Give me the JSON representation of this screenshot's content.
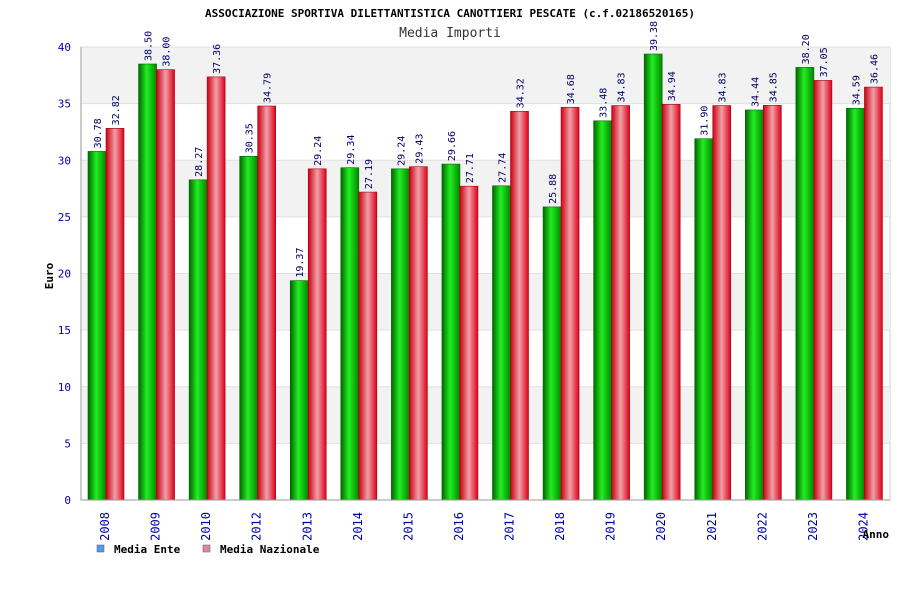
{
  "chart_data": {
    "type": "bar",
    "title": "ASSOCIAZIONE SPORTIVA DILETTANTISTICA CANOTTIERI PESCATE (c.f.02186520165)",
    "subtitle": "Media Importi",
    "xlabel": "Anno",
    "ylabel": "Euro",
    "ylim": [
      0,
      40
    ],
    "yticks": [
      0,
      5,
      10,
      15,
      20,
      25,
      30,
      35,
      40
    ],
    "grid": true,
    "legend_position": "bottom-left",
    "categories": [
      "2008",
      "2009",
      "2010",
      "2012",
      "2013",
      "2014",
      "2015",
      "2016",
      "2017",
      "2018",
      "2019",
      "2020",
      "2021",
      "2022",
      "2023",
      "2024"
    ],
    "series": [
      {
        "name": "Media Ente",
        "color": "#00aa00",
        "legend_color": "#5599ee",
        "values": [
          30.78,
          38.5,
          28.27,
          30.35,
          19.37,
          29.34,
          29.24,
          29.66,
          27.74,
          25.88,
          33.48,
          39.38,
          31.9,
          34.44,
          38.2,
          34.59
        ],
        "labels": [
          "30.78",
          "38.50",
          "28.27",
          "30.35",
          "19.37",
          "29.34",
          "29.24",
          "29.66",
          "27.74",
          "25.88",
          "33.48",
          "39.38",
          "31.90",
          "34.44",
          "38.20",
          "34.59"
        ]
      },
      {
        "name": "Media Nazionale",
        "color": "#e02030",
        "legend_color": "#dd88aa",
        "values": [
          32.82,
          38.0,
          37.36,
          34.79,
          29.24,
          27.19,
          29.43,
          27.71,
          34.32,
          34.68,
          34.83,
          34.94,
          34.83,
          34.85,
          37.05,
          36.46
        ],
        "labels": [
          "32.82",
          "38.00",
          "37.36",
          "34.79",
          "29.24",
          "27.19",
          "29.43",
          "27.71",
          "34.32",
          "34.68",
          "34.83",
          "34.94",
          "34.83",
          "34.85",
          "37.05",
          "36.46"
        ]
      }
    ]
  }
}
